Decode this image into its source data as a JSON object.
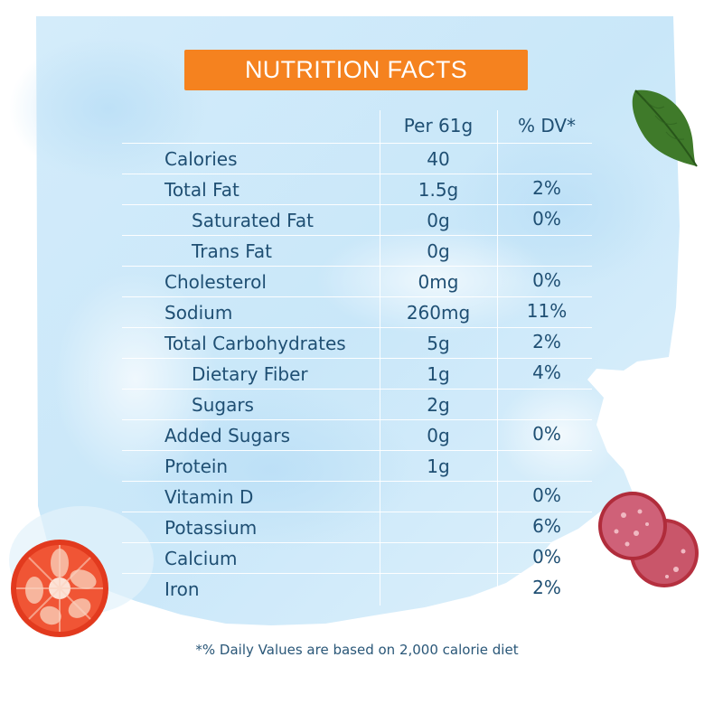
{
  "title": "NUTRITION FACTS",
  "header": {
    "amount": "Per 61g",
    "dv": "% DV*"
  },
  "rows": [
    {
      "name": "Calories",
      "amount": "40",
      "dv": "",
      "indent": false
    },
    {
      "name": "Total Fat",
      "amount": "1.5g",
      "dv": "2%",
      "indent": false
    },
    {
      "name": "Saturated Fat",
      "amount": "0g",
      "dv": "0%",
      "indent": true
    },
    {
      "name": "Trans Fat",
      "amount": "0g",
      "dv": "",
      "indent": true
    },
    {
      "name": "Cholesterol",
      "amount": "0mg",
      "dv": "0%",
      "indent": false
    },
    {
      "name": "Sodium",
      "amount": "260mg",
      "dv": "11%",
      "indent": false
    },
    {
      "name": "Total Carbohydrates",
      "amount": "5g",
      "dv": "2%",
      "indent": false
    },
    {
      "name": "Dietary Fiber",
      "amount": "1g",
      "dv": "4%",
      "indent": true
    },
    {
      "name": "Sugars",
      "amount": "2g",
      "dv": "",
      "indent": true
    },
    {
      "name": "Added Sugars",
      "amount": "0g",
      "dv": "0%",
      "indent": false
    },
    {
      "name": "Protein",
      "amount": "1g",
      "dv": "",
      "indent": false
    },
    {
      "name": "Vitamin D",
      "amount": "",
      "dv": "0%",
      "indent": false
    },
    {
      "name": "Potassium",
      "amount": "",
      "dv": "6%",
      "indent": false
    },
    {
      "name": "Calcium",
      "amount": "",
      "dv": "0%",
      "indent": false
    },
    {
      "name": "Iron",
      "amount": "",
      "dv": "2%",
      "indent": false
    }
  ],
  "footnote": "*% Daily Values are based on 2,000 calorie diet",
  "colors": {
    "title_bg": "#f5821f",
    "text": "#1f4f73",
    "watercolor": "#cfe9f8"
  },
  "decorations": [
    "basil-leaf-icon",
    "tomato-slice-icon",
    "salami-slices-icon"
  ]
}
